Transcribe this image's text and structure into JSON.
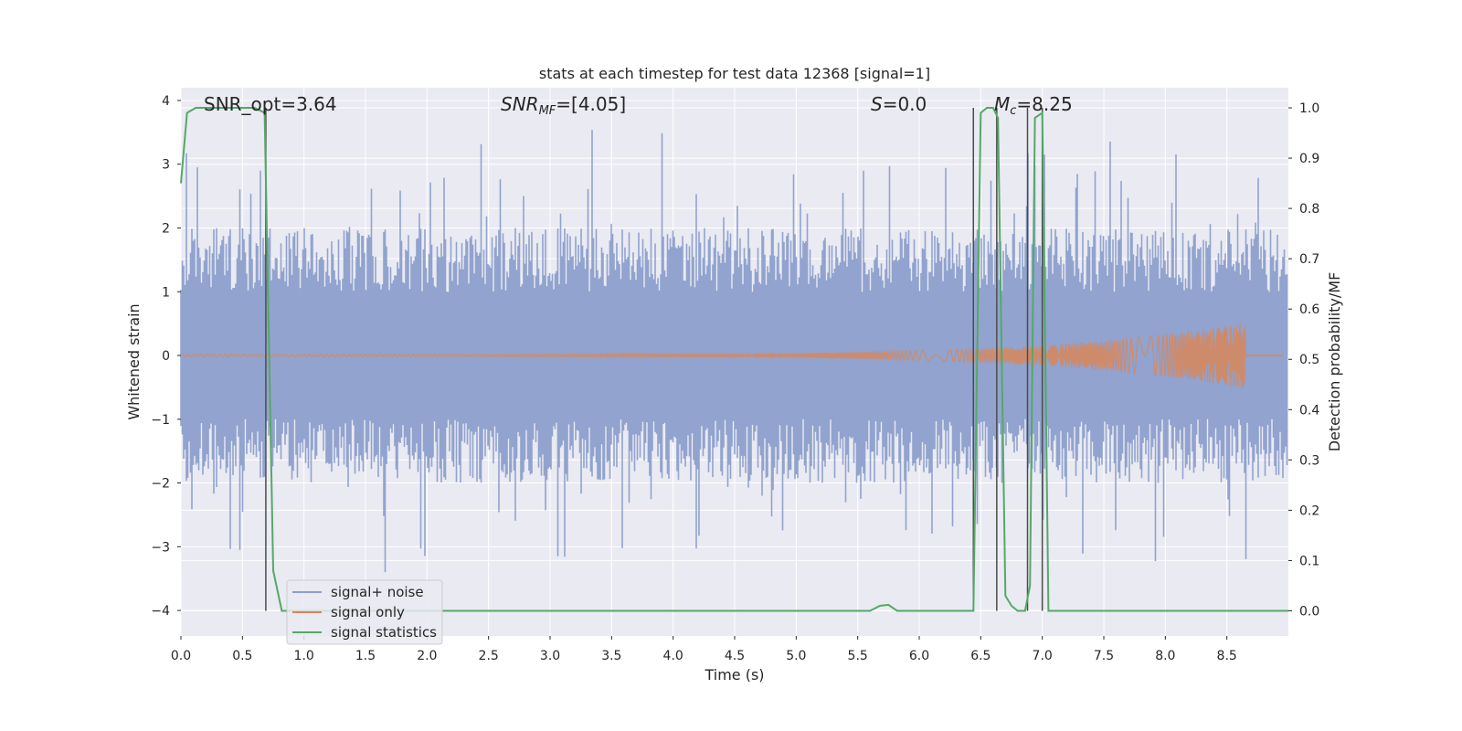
{
  "chart_data": {
    "type": "line",
    "title": "stats at each timestep for test data 12368 [signal=1]",
    "xlabel": "Time (s)",
    "ylabel": "Whitened strain",
    "y2label": "Detection probability/MF",
    "xlim": [
      0.0,
      9.0
    ],
    "ylim": [
      -4.4,
      4.2
    ],
    "y2lim": [
      -0.05,
      1.04
    ],
    "xticks": [
      0.0,
      0.5,
      1.0,
      1.5,
      2.0,
      2.5,
      3.0,
      3.5,
      4.0,
      4.5,
      5.0,
      5.5,
      6.0,
      6.5,
      7.0,
      7.5,
      8.0,
      8.5
    ],
    "xtick_labels": [
      "0.0",
      "0.5",
      "1.0",
      "1.5",
      "2.0",
      "2.5",
      "3.0",
      "3.5",
      "4.0",
      "4.5",
      "5.0",
      "5.5",
      "6.0",
      "6.5",
      "7.0",
      "7.5",
      "8.0",
      "8.5"
    ],
    "yticks": [
      -4,
      -3,
      -2,
      -1,
      0,
      1,
      2,
      3,
      4
    ],
    "ytick_labels": [
      "−4",
      "−3",
      "−2",
      "−1",
      "0",
      "1",
      "2",
      "3",
      "4"
    ],
    "y2ticks": [
      0.0,
      0.1,
      0.2,
      0.3,
      0.4,
      0.5,
      0.6,
      0.7,
      0.8,
      0.9,
      1.0
    ],
    "y2tick_labels": [
      "0.0",
      "0.1",
      "0.2",
      "0.3",
      "0.4",
      "0.5",
      "0.6",
      "0.7",
      "0.8",
      "0.9",
      "1.0"
    ],
    "grid": true,
    "legend_position": "bottom-left",
    "annotations": [
      {
        "key": "snr_opt",
        "text": "SNR_opt=3.64",
        "italic": false
      },
      {
        "key": "snr_mf",
        "text": "SNRMF=[4.05]",
        "italic": true
      },
      {
        "key": "s",
        "text": "S=0.0",
        "italic": true
      },
      {
        "key": "mc",
        "text": "Mc=8.25",
        "italic": true
      }
    ],
    "series": [
      {
        "name": "signal+ noise",
        "color": "#8c9fcb",
        "axis": "left",
        "envelope": {
          "x_start": 0.0,
          "x_end": 9.0,
          "seed": 12368,
          "typical_abs_max": 2.0,
          "extreme_abs_max": 3.8
        }
      },
      {
        "name": "signal only",
        "color": "#dd8452",
        "axis": "left",
        "chirp": {
          "x_start": 0.0,
          "x_end": 8.65,
          "amp_start": 0.0,
          "amp_peak": 0.5,
          "freq_start": 20,
          "freq_end": 200
        }
      },
      {
        "name": "signal statistics",
        "color": "#55a868",
        "axis": "right",
        "x": [
          0.0,
          0.05,
          0.12,
          0.2,
          0.4,
          0.6,
          0.68,
          0.75,
          0.82,
          1.0,
          2.0,
          3.0,
          4.0,
          5.0,
          5.6,
          5.68,
          5.75,
          5.82,
          6.0,
          6.44,
          6.5,
          6.55,
          6.6,
          6.64,
          6.7,
          6.75,
          6.8,
          6.86,
          6.9,
          6.94,
          7.0,
          7.05,
          7.1,
          7.15,
          7.5,
          8.0,
          9.0
        ],
        "y": [
          0.85,
          0.99,
          1.0,
          1.0,
          1.0,
          1.0,
          0.99,
          0.08,
          0.0,
          0.0,
          0.0,
          0.0,
          0.0,
          0.0,
          0.0,
          0.01,
          0.012,
          0.0,
          0.0,
          0.0,
          0.99,
          1.0,
          1.0,
          0.98,
          0.03,
          0.01,
          0.0,
          0.0,
          0.05,
          0.98,
          0.99,
          0.0,
          0.0,
          0.0,
          0.0,
          0.0,
          0.0
        ]
      }
    ],
    "vertical_markers": [
      0.69,
      6.44,
      6.63,
      6.88,
      7.0
    ],
    "marker_color": "#4c4c4c"
  }
}
